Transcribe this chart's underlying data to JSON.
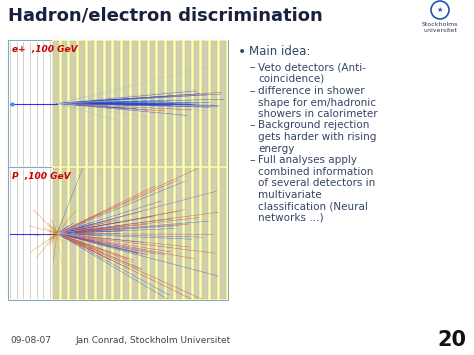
{
  "title": "Hadron/electron discrimination",
  "title_color": "#1a2040",
  "title_fontsize": 13,
  "bg_color": "#ffffff",
  "footer_left": "09-08-07",
  "footer_right": "Jan Conrad, Stockholm Universitet",
  "page_number": "20",
  "bullet_main": "Main idea:",
  "bullets": [
    "Veto detectors (Anti-\ncoincidence)",
    "difference in shower\nshape for em/hadronic\nshowers in calorimeter",
    "Background rejection\ngets harder with rising\nenergy",
    "Full analyses apply\ncombined information\nof several detectors in\nmultivariate\nclassification (Neural\nnetworks …)"
  ],
  "text_color": "#334466",
  "label_electron": "e+  ,100 GeV",
  "label_proton": "P  ,100 GeV",
  "label_color": "#cc0000",
  "yellow_bg": "#ffffaa",
  "col_color": "#c8c8b0",
  "col_edge": "#b0b0a0",
  "panel_border": "#88aabb",
  "tracker_line_color": "#b0b0a0"
}
